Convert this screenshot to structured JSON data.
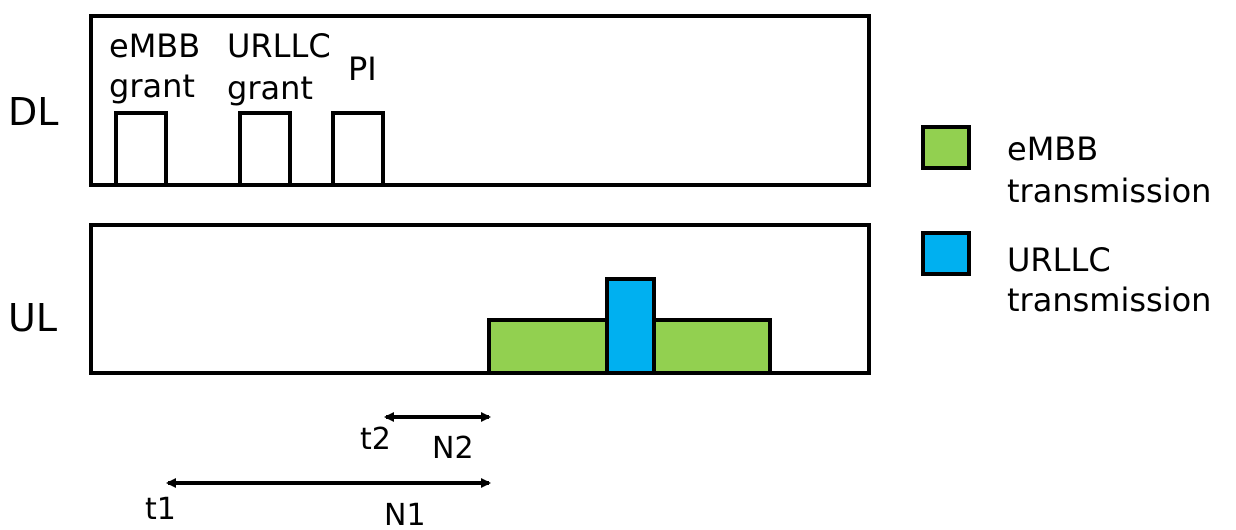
{
  "rows": {
    "dl_label": "DL",
    "ul_label": "UL"
  },
  "dl_blocks": {
    "embb_grant": [
      "eMBB",
      "grant"
    ],
    "urllc_grant": [
      "URLLC",
      "grant"
    ],
    "pi": "PI"
  },
  "timing": {
    "t2": "t2",
    "n2": "N2",
    "t1": "t1",
    "n1": "N1"
  },
  "legend": {
    "embb": {
      "line1": "eMBB",
      "line2": "transmission",
      "color": "#92d050"
    },
    "urllc": {
      "line1": "URLLC",
      "line2": "transmission",
      "color": "#00b0f0"
    }
  }
}
